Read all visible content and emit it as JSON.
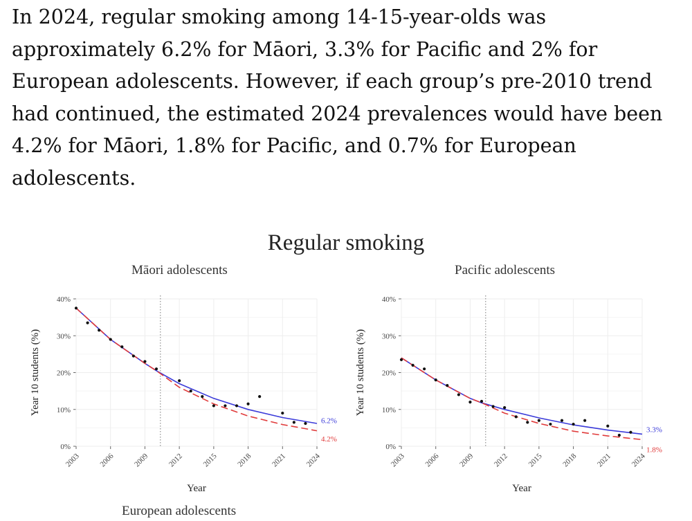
{
  "paragraph": "In 2024, regular smoking among 14-15-year-olds was approximately 6.2% for Māori, 3.3% for Pacific and 2% for European adolescents. However, if each group’s pre-2010 trend had continued, the estimated 2024 prevalences would have been 4.2% for Māori, 1.8% for Pacific, and 0.7% for European adolescents.",
  "figure": {
    "title": "Regular smoking",
    "third_panel_title": "European adolescents"
  },
  "colors": {
    "observed_trend": "#3a3ad9",
    "counterfactual": "#e03a3a",
    "points": "#111111"
  },
  "chart_data": [
    {
      "type": "scatter",
      "title": "Māori adolescents",
      "xlabel": "Year",
      "ylabel": "Year 10 students (%)",
      "xlim": [
        2003,
        2024
      ],
      "ylim": [
        0,
        40
      ],
      "x_ticks": [
        "2003",
        "2006",
        "2009",
        "2012",
        "2015",
        "2018",
        "2021",
        "2024"
      ],
      "y_ticks": [
        "0%",
        "10%",
        "20%",
        "30%",
        "40%"
      ],
      "breakpoint_year": 2010,
      "grid": true,
      "points": {
        "x": [
          2003,
          2004,
          2005,
          2006,
          2007,
          2008,
          2009,
          2010,
          2012,
          2013,
          2014,
          2015,
          2016,
          2017,
          2018,
          2019,
          2021,
          2022,
          2023
        ],
        "y": [
          37.5,
          33.5,
          31.5,
          29,
          27,
          24.5,
          23,
          21,
          17.8,
          15,
          13.5,
          11,
          11,
          11,
          11.5,
          13.5,
          9,
          6.5,
          6.2
        ]
      },
      "series": [
        {
          "name": "",
          "style": "solid",
          "x": [
            2003,
            2006,
            2009,
            2010,
            2012,
            2015,
            2018,
            2021,
            2024
          ],
          "y": [
            37.5,
            29,
            22.5,
            20.5,
            17,
            13,
            10,
            7.8,
            6.2
          ]
        },
        {
          "name": "",
          "style": "dashed",
          "x": [
            2003,
            2006,
            2009,
            2010,
            2012,
            2015,
            2018,
            2021,
            2024
          ],
          "y": [
            37.5,
            29,
            22.5,
            20.5,
            16,
            11.5,
            8.2,
            5.9,
            4.2
          ]
        }
      ],
      "end_labels": [
        "6.2%",
        "4.2%"
      ]
    },
    {
      "type": "scatter",
      "title": "Pacific adolescents",
      "xlabel": "Year",
      "ylabel": "Year 10 students (%)",
      "xlim": [
        2003,
        2024
      ],
      "ylim": [
        0,
        40
      ],
      "x_ticks": [
        "2003",
        "2006",
        "2009",
        "2012",
        "2015",
        "2018",
        "2021",
        "2024"
      ],
      "y_ticks": [
        "0%",
        "10%",
        "20%",
        "30%",
        "40%"
      ],
      "breakpoint_year": 2010,
      "grid": true,
      "points": {
        "x": [
          2003,
          2004,
          2005,
          2006,
          2007,
          2008,
          2009,
          2010,
          2011,
          2012,
          2013,
          2014,
          2015,
          2016,
          2017,
          2018,
          2019,
          2021,
          2022,
          2023
        ],
        "y": [
          23.5,
          22,
          21,
          18,
          16.5,
          14,
          12,
          12.2,
          10.8,
          10.5,
          8,
          6.5,
          7,
          6,
          7,
          6,
          7,
          5.5,
          3,
          3.8
        ]
      },
      "series": [
        {
          "name": "",
          "style": "solid",
          "x": [
            2003,
            2006,
            2009,
            2010,
            2012,
            2015,
            2018,
            2021,
            2024
          ],
          "y": [
            24,
            18,
            13,
            11.8,
            10,
            7.7,
            5.8,
            4.4,
            3.3
          ]
        },
        {
          "name": "",
          "style": "dashed",
          "x": [
            2003,
            2006,
            2009,
            2010,
            2012,
            2015,
            2018,
            2021,
            2024
          ],
          "y": [
            24,
            18,
            13,
            11.8,
            9,
            6.2,
            4.1,
            2.8,
            1.8
          ]
        }
      ],
      "end_labels": [
        "3.3%",
        "1.8%"
      ]
    }
  ]
}
